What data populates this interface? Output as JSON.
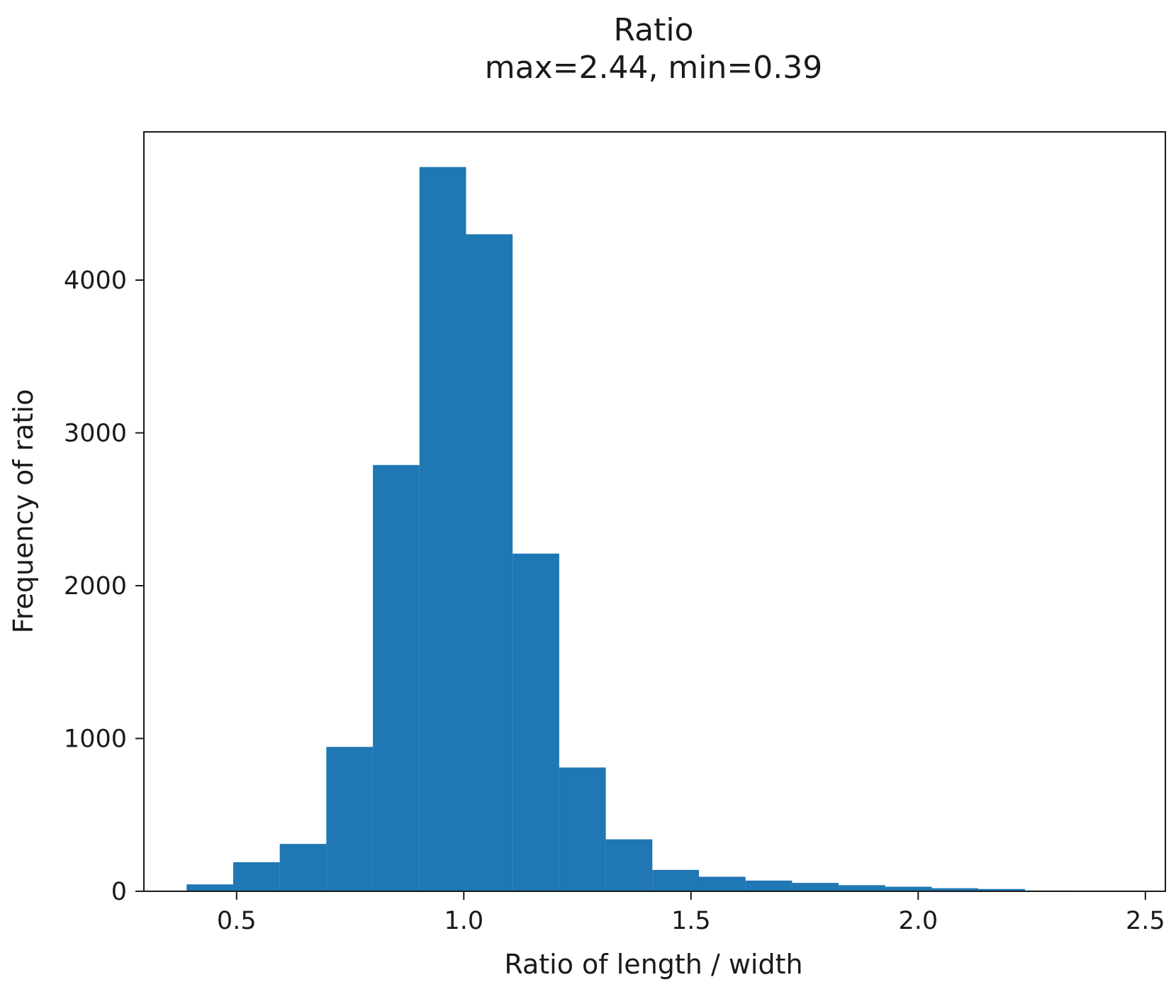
{
  "chart_data": {
    "type": "bar",
    "title": "Ratio",
    "subtitle": "max=2.44, min=0.39",
    "xlabel": "Ratio of length / width",
    "ylabel": "Frequency of ratio",
    "xlim": [
      0.296,
      2.544
    ],
    "ylim": [
      0,
      4970
    ],
    "x_ticks": [
      {
        "value": 0.5,
        "label": "0.5"
      },
      {
        "value": 1.0,
        "label": "1.0"
      },
      {
        "value": 1.5,
        "label": "1.5"
      },
      {
        "value": 2.0,
        "label": "2.0"
      },
      {
        "value": 2.5,
        "label": "2.5"
      }
    ],
    "y_ticks": [
      {
        "value": 0,
        "label": "0"
      },
      {
        "value": 1000,
        "label": "1000"
      },
      {
        "value": 2000,
        "label": "2000"
      },
      {
        "value": 3000,
        "label": "3000"
      },
      {
        "value": 4000,
        "label": "4000"
      }
    ],
    "bins": [
      {
        "x0": 0.39,
        "x1": 0.4925,
        "value": 45
      },
      {
        "x0": 0.4925,
        "x1": 0.595,
        "value": 190
      },
      {
        "x0": 0.595,
        "x1": 0.6975,
        "value": 310
      },
      {
        "x0": 0.6975,
        "x1": 0.8,
        "value": 945
      },
      {
        "x0": 0.8,
        "x1": 0.9025,
        "value": 2790
      },
      {
        "x0": 0.9025,
        "x1": 1.005,
        "value": 4740
      },
      {
        "x0": 1.005,
        "x1": 1.1075,
        "value": 4300
      },
      {
        "x0": 1.1075,
        "x1": 1.21,
        "value": 2210
      },
      {
        "x0": 1.21,
        "x1": 1.3125,
        "value": 810
      },
      {
        "x0": 1.3125,
        "x1": 1.415,
        "value": 340
      },
      {
        "x0": 1.415,
        "x1": 1.5175,
        "value": 140
      },
      {
        "x0": 1.5175,
        "x1": 1.62,
        "value": 95
      },
      {
        "x0": 1.62,
        "x1": 1.7225,
        "value": 70
      },
      {
        "x0": 1.7225,
        "x1": 1.825,
        "value": 55
      },
      {
        "x0": 1.825,
        "x1": 1.9275,
        "value": 40
      },
      {
        "x0": 1.9275,
        "x1": 2.03,
        "value": 30
      },
      {
        "x0": 2.03,
        "x1": 2.1325,
        "value": 20
      },
      {
        "x0": 2.1325,
        "x1": 2.235,
        "value": 15
      },
      {
        "x0": 2.235,
        "x1": 2.3375,
        "value": 5
      },
      {
        "x0": 2.3375,
        "x1": 2.44,
        "value": 3
      }
    ],
    "bar_color": "#1f77b4",
    "grid": false,
    "legend": "none"
  }
}
